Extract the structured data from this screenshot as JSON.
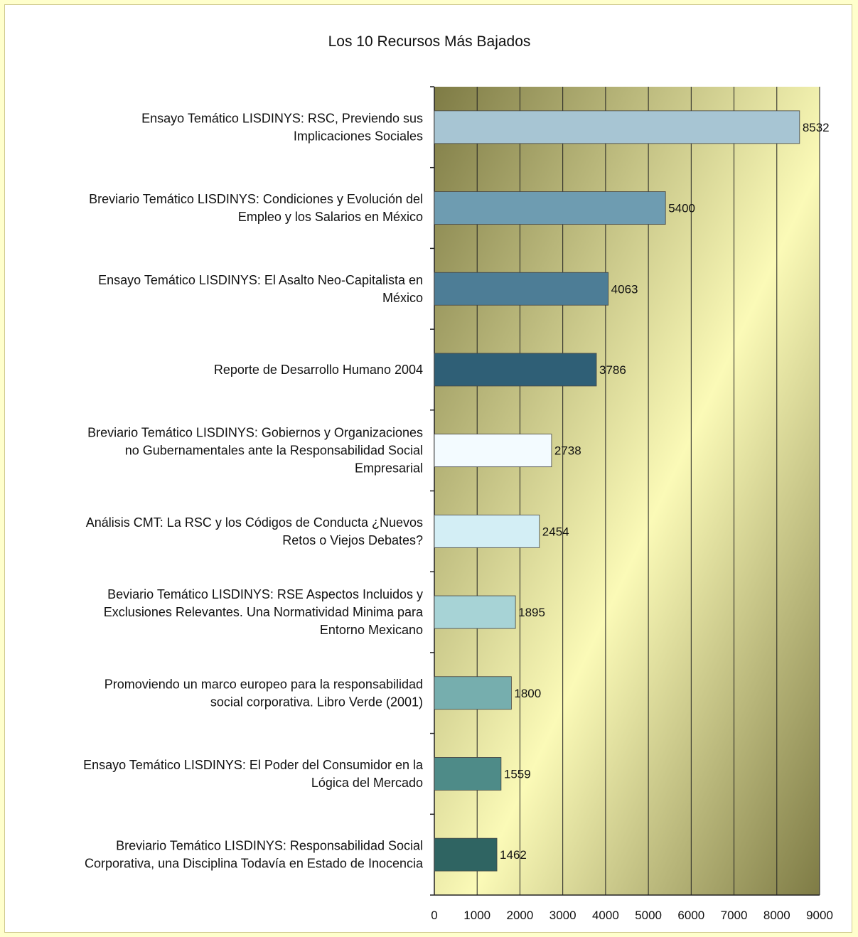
{
  "chart_data": {
    "type": "bar",
    "orientation": "horizontal",
    "title": "Los 10 Recursos Más Bajados",
    "xlabel": "",
    "ylabel": "",
    "xlim": [
      0,
      9000
    ],
    "xticks": [
      0,
      1000,
      2000,
      3000,
      4000,
      5000,
      6000,
      7000,
      8000,
      9000
    ],
    "grid": "vertical",
    "legend": "none",
    "categories": [
      [
        "Ensayo Temático LISDINYS: RSC, Previendo sus",
        "Implicaciones Sociales"
      ],
      [
        "Breviario Temático LISDINYS: Condiciones y Evolución del",
        "Empleo y los Salarios en México"
      ],
      [
        "Ensayo Temático LISDINYS: El Asalto Neo-Capitalista en",
        "México"
      ],
      [
        "Reporte de Desarrollo Humano 2004"
      ],
      [
        "Breviario Temático LISDINYS:  Gobiernos y Organizaciones",
        "no Gubernamentales ante la Responsabilidad Social",
        "Empresarial"
      ],
      [
        "Análisis CMT: La RSC y los Códigos de Conducta ¿Nuevos",
        "Retos o Viejos Debates?"
      ],
      [
        "Beviario Temático LISDINYS: RSE Aspectos Incluidos y",
        "Exclusiones Relevantes.  Una Normatividad Minima para",
        "Entorno Mexicano"
      ],
      [
        "Promoviendo un marco europeo para la responsabilidad",
        "social corporativa.  Libro Verde  (2001)"
      ],
      [
        "Ensayo Temático LISDINYS:  El Poder del Consumidor en la",
        "Lógica del Mercado"
      ],
      [
        "Breviario Temático LISDINYS:  Responsabilidad Social",
        "Corporativa, una Disciplina Todavía en Estado de Inocencia"
      ]
    ],
    "values": [
      8532,
      5400,
      4063,
      3786,
      2738,
      2454,
      1895,
      1800,
      1559,
      1462
    ],
    "data_labels": [
      "8532",
      "5400",
      "4063",
      "3786",
      "2738",
      "2454",
      "1895",
      "1800",
      "1559",
      "1462"
    ],
    "colors": [
      "#a7c5d3",
      "#6e9cb1",
      "#4d7d96",
      "#2f5f76",
      "#f3fbff",
      "#d3eef5",
      "#a7d3d6",
      "#76aeae",
      "#4e8b88",
      "#2f6462"
    ],
    "background_colors": {
      "plot_dark": "#7e7b45",
      "plot_light": "#fbfab7",
      "page": "#ffffcc"
    }
  }
}
